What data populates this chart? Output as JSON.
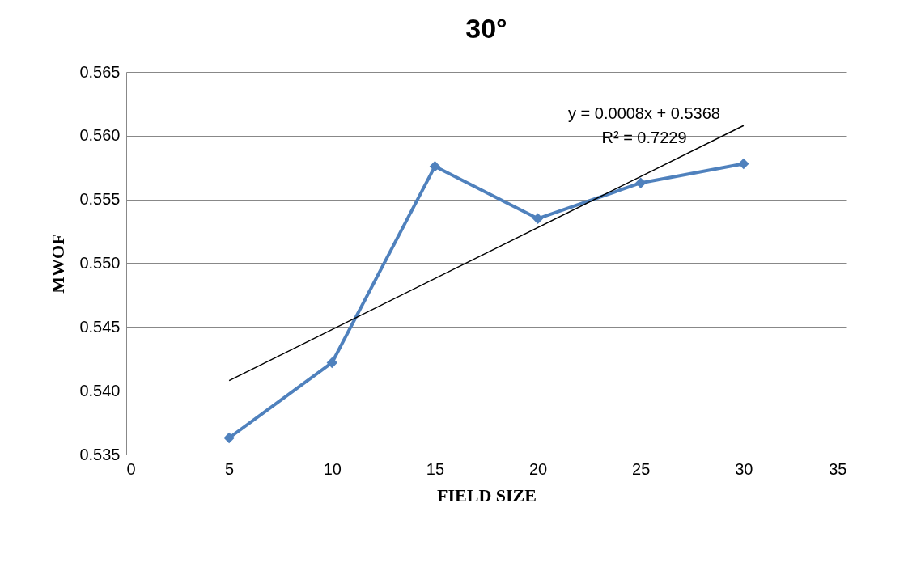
{
  "chart_data": {
    "type": "line",
    "title": "30°",
    "xlabel": "FIELD SIZE",
    "ylabel": "MWOF",
    "x": [
      5,
      10,
      15,
      20,
      25,
      30
    ],
    "series": [
      {
        "color": "#4f81bd",
        "values": [
          0.5363,
          0.5422,
          0.5576,
          0.5535,
          0.5563,
          0.5578
        ],
        "marker": "diamond"
      },
      {
        "type": "line",
        "color": "#000000",
        "x": [
          5,
          30
        ],
        "values": [
          0.5408,
          0.5608
        ],
        "marker": "none"
      }
    ],
    "xlim": [
      0,
      35
    ],
    "xticks": [
      0,
      5,
      10,
      15,
      20,
      25,
      30,
      35
    ],
    "ylim": [
      0.535,
      0.565
    ],
    "yticks": [
      0.535,
      {
        "value": 0.54,
        "label": "0.540"
      },
      0.545,
      {
        "value": 0.55,
        "label": "0.550"
      },
      0.555,
      {
        "value": 0.56,
        "label": "0.560"
      },
      0.565
    ],
    "grid": "y",
    "annotations": [
      "y = 0.0008x + 0.5368",
      "R² = 0.7229"
    ]
  }
}
